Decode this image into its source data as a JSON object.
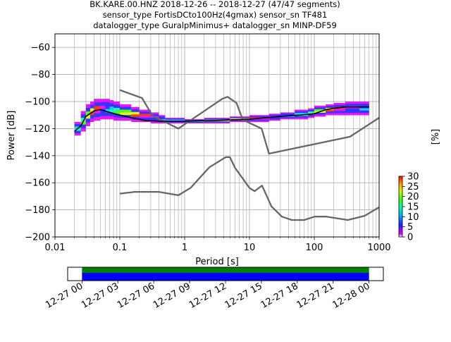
{
  "title_lines": [
    "BK.KARE.00.HNZ   2018-12-26 -- 2018-12-27  (47/47 segments)",
    "sensor_type FortisDCto100Hz(4gmax) sensor_sn TF481",
    "datalogger_type GuralpMinimus+ datalogger_sn MINP-DF59"
  ],
  "chart_data": {
    "type": "ppsd",
    "xlabel": "Period [s]",
    "ylabel": "Power [dB]",
    "xscale": "log",
    "xlim": [
      0.01,
      1000
    ],
    "ylim": [
      -200,
      -50
    ],
    "xticks": [
      0.01,
      0.1,
      1,
      10,
      100,
      1000
    ],
    "xtick_labels": [
      "0.01",
      "0.1",
      "1",
      "10",
      "100",
      "1000"
    ],
    "yticks": [
      -200,
      -180,
      -160,
      -140,
      -120,
      -100,
      -80,
      -60
    ],
    "ytick_labels": [
      "−200",
      "−180",
      "−160",
      "−140",
      "−120",
      "−100",
      "−80",
      "−60"
    ],
    "grid": true,
    "colorbar": {
      "label": "[%]",
      "range": [
        0,
        30
      ],
      "ticks": [
        0,
        5,
        10,
        15,
        20,
        25,
        30
      ],
      "tick_labels": [
        "0",
        "5",
        "10",
        "15",
        "20",
        "25",
        "30"
      ]
    },
    "noise_models": {
      "high": {
        "x": [
          0.1,
          0.22,
          0.32,
          0.8,
          3.8,
          4.6,
          6.3,
          7.9,
          15.4,
          20,
          354.8,
          1000
        ],
        "y": [
          -91.5,
          -97.4,
          -110.5,
          -120,
          -98,
          -96.5,
          -101,
          -113.5,
          -120,
          -138.5,
          -126,
          -112
        ]
      },
      "low": {
        "x": [
          0.1,
          0.17,
          0.4,
          0.8,
          1.24,
          2.4,
          4.3,
          5.0,
          6.0,
          10.0,
          12.0,
          15.6,
          21.9,
          31.6,
          45.0,
          70.0,
          101.0,
          154.0,
          328.0,
          600.0,
          1000.0
        ],
        "y": [
          -168,
          -166.7,
          -166.7,
          -169.2,
          -163.7,
          -148.6,
          -141.1,
          -141.1,
          -149.0,
          -163.8,
          -166.2,
          -162.1,
          -177.5,
          -185.0,
          -187.5,
          -187.5,
          -185.0,
          -185.0,
          -187.5,
          -184.4,
          -178.0
        ]
      }
    },
    "mode_line": {
      "x": [
        0.02,
        0.025,
        0.03,
        0.04,
        0.05,
        0.07,
        0.1,
        0.15,
        0.25,
        0.4,
        1,
        3,
        10,
        30,
        60,
        100,
        150,
        200,
        300,
        700
      ],
      "y": [
        -122,
        -118,
        -111,
        -107,
        -106,
        -108,
        -110,
        -112,
        -114,
        -114.5,
        -114.5,
        -114,
        -113,
        -111,
        -110,
        -109,
        -106,
        -105,
        -104,
        -104
      ]
    },
    "density_band": {
      "x": [
        0.02,
        0.025,
        0.03,
        0.035,
        0.04,
        0.05,
        0.06,
        0.07,
        0.08,
        0.1,
        0.15,
        0.2,
        0.3,
        0.4,
        0.5,
        1,
        2,
        5,
        10,
        20,
        30,
        50,
        80,
        100,
        150,
        200,
        300,
        500,
        700
      ],
      "upper": [
        -120,
        -115,
        -107,
        -102,
        -100,
        -98,
        -98,
        -99,
        -100,
        -102,
        -104,
        -106,
        -108,
        -110,
        -112,
        -113,
        -113,
        -112,
        -111,
        -110,
        -109,
        -108,
        -106,
        -105,
        -103,
        -102,
        -101,
        -100,
        -100
      ],
      "lower": [
        -125,
        -122,
        -118,
        -115,
        -114,
        -113,
        -113,
        -113,
        -113,
        -114,
        -114,
        -115,
        -115,
        -116,
        -116,
        -116,
        -116,
        -115,
        -115,
        -114,
        -113,
        -113,
        -112,
        -111,
        -110,
        -110,
        -110,
        -110,
        -110
      ]
    },
    "coverage": {
      "xlim_labels": [
        "12-27 00",
        "12-27 03",
        "12-27 06",
        "12-27 09",
        "12-27 12",
        "12-27 15",
        "12-27 18",
        "12-27 21",
        "12-28 00"
      ],
      "range_hours": [
        0,
        24
      ],
      "span_hours": [
        -1.2,
        25.2
      ],
      "rows": [
        {
          "color": "#008000",
          "start_hours": 0,
          "end_hours": 24
        },
        {
          "color": "#0000ff",
          "start_hours": 0,
          "end_hours": 24
        }
      ]
    }
  }
}
